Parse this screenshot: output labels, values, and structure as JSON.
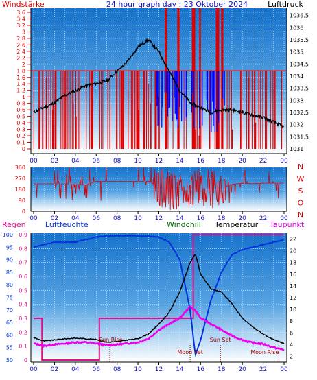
{
  "header": {
    "title": "24 hour graph day : 23 Oktober 2024",
    "left_label": "Windstärke",
    "right_label": "Luftdruck"
  },
  "colors": {
    "wind_red": "#e00000",
    "wind_blue": "#0000ff",
    "pressure_black": "#000000",
    "temp_black": "#000000",
    "humidity_blue": "#0033dd",
    "dewpoint_magenta": "#ee00ee",
    "rain_pink": "#e0108a",
    "windchill_green": "#006600",
    "grid": "#ffffff",
    "bg_top": "#1e7ad0",
    "bg_bottom": "#ffffff"
  },
  "chart_data": [
    {
      "type": "line",
      "panel": "top",
      "x_ticks": [
        "00",
        "02",
        "04",
        "06",
        "08",
        "10",
        "12",
        "14",
        "16",
        "18",
        "20",
        "22",
        "00"
      ],
      "left_axis": {
        "label": "Windstärke",
        "ticks": [
          "0",
          "0.1",
          "0.2",
          "0.3",
          "0.4",
          "0.5",
          "0.6",
          "0.8",
          "1",
          "1.2",
          "1.4",
          "1.6",
          "1.8",
          "2",
          "2.2",
          "2.4",
          "2.6",
          "2.8",
          "3",
          "3.2",
          "3.4",
          "3.6"
        ]
      },
      "right_axis": {
        "label": "Luftdruck",
        "ticks": [
          "1031",
          "1031.5",
          "1032",
          "1032.5",
          "1033",
          "1033.5",
          "1034",
          "1034.5",
          "1035",
          "1035.5",
          "1036",
          "1036.5"
        ],
        "ylim": [
          1030.8,
          1036.8
        ]
      },
      "series": [
        {
          "name": "Luftdruck",
          "x_hours": [
            0,
            1,
            2,
            3,
            4,
            5,
            6,
            7,
            8,
            9,
            10,
            11,
            12,
            13,
            14,
            15,
            16,
            17,
            18,
            19,
            20,
            21,
            22,
            23,
            24
          ],
          "values": [
            1032.5,
            1032.7,
            1032.9,
            1033.2,
            1033.4,
            1033.6,
            1033.7,
            1033.8,
            1034.2,
            1034.6,
            1035.2,
            1035.5,
            1035.0,
            1034.2,
            1033.4,
            1032.9,
            1032.7,
            1032.5,
            1032.6,
            1032.6,
            1032.5,
            1032.4,
            1032.3,
            1032.1,
            1031.9
          ]
        }
      ]
    },
    {
      "type": "line",
      "panel": "middle",
      "x_ticks": [
        "00",
        "02",
        "04",
        "06",
        "08",
        "10",
        "12",
        "14",
        "16",
        "18",
        "20",
        "22",
        "00"
      ],
      "left_axis": {
        "ticks": [
          "0",
          "90",
          "180",
          "270",
          "360"
        ],
        "ylim": [
          0,
          360
        ]
      },
      "right_axis": {
        "ticks": [
          "N",
          "W",
          "S",
          "O",
          "N"
        ]
      },
      "series": [
        {
          "name": "Windrichtung",
          "x_hours": [
            0,
            1,
            2,
            3,
            4,
            5,
            6,
            7,
            8,
            9,
            10,
            11,
            12,
            13,
            14,
            15,
            16,
            17,
            18,
            19,
            20,
            21,
            22,
            23,
            24
          ],
          "values": [
            225,
            225,
            225,
            225,
            220,
            215,
            245,
            245,
            245,
            245,
            245,
            245,
            200,
            170,
            150,
            170,
            200,
            180,
            190,
            220,
            230,
            225,
            230,
            230,
            230
          ]
        }
      ]
    },
    {
      "type": "line",
      "panel": "bottom",
      "x_ticks": [
        "00",
        "02",
        "04",
        "06",
        "08",
        "10",
        "12",
        "14",
        "16",
        "18",
        "20",
        "22",
        "00"
      ],
      "regen_axis": {
        "label": "Regen",
        "ticks": [
          "0",
          "0.1",
          "0.2",
          "0.3",
          "0.4",
          "0.5",
          "0.6",
          "0.7",
          "0.8",
          "0.9"
        ],
        "ylim": [
          0,
          0.9
        ]
      },
      "humidity_axis": {
        "label": "Luftfeuchte",
        "ticks": [
          "50",
          "55",
          "60",
          "65",
          "70",
          "75",
          "80",
          "85",
          "90",
          "95",
          "100"
        ],
        "ylim": [
          50,
          100
        ]
      },
      "temperature_axis": {
        "ticks": [
          "2",
          "4",
          "6",
          "8",
          "10",
          "12",
          "14",
          "16",
          "18",
          "20",
          "22"
        ],
        "ylim": [
          1,
          23
        ]
      },
      "legend": [
        "Regen",
        "Luftfeuchte",
        "Windchill",
        "Temperatur",
        "Taupunkt"
      ],
      "annotations": [
        "Sun Rise",
        "Moon Set",
        "Sun Set",
        "Moon Rise"
      ],
      "series": [
        {
          "name": "Luftfeuchte",
          "x_hours": [
            0,
            1,
            2,
            3,
            4,
            5,
            6,
            7,
            8,
            9,
            10,
            11,
            12,
            13,
            14,
            15,
            15.5,
            16,
            17,
            18,
            19,
            20,
            21,
            22,
            23,
            24
          ],
          "values": [
            95,
            96,
            97,
            97,
            97,
            98,
            99,
            99.5,
            99.5,
            99.5,
            99.5,
            99.5,
            99,
            97,
            90,
            70,
            52,
            58,
            74,
            85,
            92,
            94,
            95,
            96,
            97,
            98
          ]
        },
        {
          "name": "Temperatur",
          "x_hours": [
            0,
            1,
            2,
            3,
            4,
            5,
            6,
            7,
            8,
            9,
            10,
            11,
            12,
            13,
            14,
            15,
            15.5,
            16,
            17,
            18,
            19,
            20,
            21,
            22,
            23,
            24
          ],
          "values": [
            5.2,
            4.6,
            4.8,
            5.0,
            5.1,
            5.0,
            4.9,
            4.4,
            4.5,
            4.8,
            5.0,
            5.8,
            7.5,
            9.5,
            13.0,
            18.0,
            19.5,
            16.0,
            13.5,
            13.0,
            11.0,
            8.5,
            7.0,
            5.8,
            4.8,
            4.2
          ]
        },
        {
          "name": "Taupunkt",
          "x_hours": [
            0,
            1,
            2,
            3,
            4,
            5,
            6,
            7,
            8,
            9,
            10,
            11,
            12,
            13,
            14,
            15,
            15.5,
            16,
            17,
            18,
            19,
            20,
            21,
            22,
            23,
            24
          ],
          "values": [
            4.2,
            3.8,
            4.0,
            4.2,
            4.4,
            4.4,
            4.2,
            3.9,
            4.0,
            4.2,
            4.4,
            5.0,
            6.5,
            7.5,
            8.5,
            10.5,
            9.8,
            8.5,
            7.5,
            6.5,
            5.5,
            4.8,
            4.3,
            4.1,
            3.5,
            3.1
          ]
        },
        {
          "name": "Regen",
          "x_hours": [
            0,
            0.8,
            0.8,
            6.3,
            6.3,
            15.3,
            15.3,
            24
          ],
          "values": [
            0.3,
            0.3,
            0,
            0,
            0.3,
            0.3,
            0.9,
            0.9
          ]
        }
      ]
    }
  ]
}
